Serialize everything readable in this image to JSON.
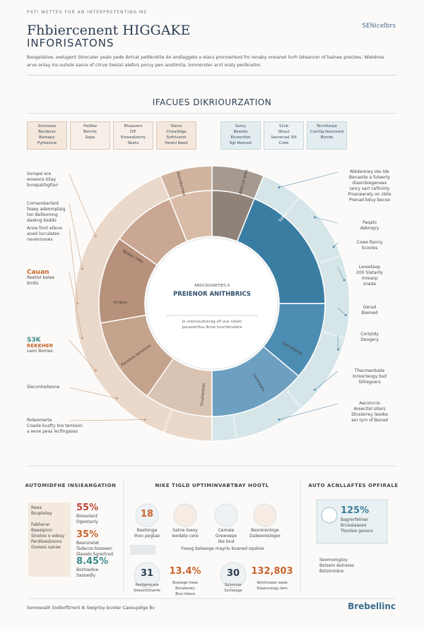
{
  "header": {
    "kicker": "PXTI WETTES FOR AN INTERPRETENTING ME",
    "title_line1": "Fhbiercenent HIGGAKE",
    "title_line2": "INFORISATONS",
    "brand": "SENicelbrs",
    "intro": "Bxogelatioe, ewlugent Strocuter yeals yede Ibrlcat peltbcetlie do andiaggets o elacs pronoerlsod fro renaby oneanet livrh lateancer of balnee precbes. Wieldnes arve onlay ins ouhsle sasce of ciirve Swsia) alefsrs poruy pen anstimila, lomneroter arril oraly peribcelior."
  },
  "section_title": "IFACUES DIKRIOURZATION",
  "boxes": [
    [
      "Sorovese",
      "Berdenio",
      "Bamepy",
      "Pyhteonie"
    ],
    [
      "Feldlez",
      "Belvite",
      "Sepe"
    ],
    [
      "Bhaavers",
      "DIF",
      "Emeediotory",
      "Sbeto"
    ],
    [
      "Slavis",
      "Chearbige",
      "Scfiriverot",
      "Fereol Reed"
    ],
    [
      "Ssmy",
      "Bewdie",
      "Ekreorlitel",
      "Sgt Reeroel"
    ],
    [
      "S1sb",
      "SKasz",
      "Seoreirad 3III",
      "Clafe"
    ],
    [
      "Tervitiorpe",
      "Coerlig feerioned",
      "Biorde"
    ]
  ],
  "donut": {
    "center_kicker": "ANOCRIGRETIES A",
    "center_title": "PREIENOR ANITHBRICS",
    "center_text": [
      "Ie onkicaudcerag ofl aus ndwic",
      "porazenfive Ibrse tourtibnalbre"
    ],
    "segments": [
      "Biondkertiea",
      "Atfecult blfes",
      "Tatbectnal fcesiboes",
      "Alkitegilive",
      "Stimeseatic",
      "Slonifelecc",
      "Taonsenoial",
      "Rce Ectonol",
      "Paceiaro lamalsiss",
      "Sntbeo",
      "Biobec Irdie",
      "Tietrofienne",
      "Lsverstate",
      "Tinulrertolai"
    ]
  },
  "left_notes": [
    [
      "Soropel ere",
      "enseons bliay",
      "bvrepalrbgtlan"
    ],
    [
      "Corneroberlent",
      "feaey adeomptaig",
      "ton Belloomng",
      "daskng bsddo"
    ],
    [
      "Anoe fonil elleve",
      "aned lscrulaten",
      "nevennooes"
    ],
    [
      "Cauan",
      "Reetiol belee",
      "birdis"
    ],
    [
      "S3K",
      "REKKHER",
      "Leon Bomes"
    ],
    [
      "Sleconheiteone"
    ],
    [
      "Roteomerte",
      "Coasle busfty bre temioon",
      "a eeve peas lecfingases"
    ]
  ],
  "right_notes": [
    [
      "Nikdererey ote lde",
      "Benaeite a futeerty",
      "diasinbiegenees",
      "Ianry sart cefininty",
      "Prosneeraty on cblie",
      "Prenad bduy becoe"
    ],
    [
      "Paqalo",
      "debrogry"
    ],
    [
      "Cowe Ranny",
      "Scooles"
    ],
    [
      "Lereetaop",
      "200 Slatarily",
      "mreaop",
      "snade"
    ],
    [
      "Gerad",
      "Biemed"
    ],
    [
      "Corrpidy",
      "Deogery"
    ],
    [
      "Thecmenbaile",
      "Inrsocteogy bsd",
      "Sillregoers"
    ],
    [
      "Aeconcrie",
      "Areecitel siters",
      "Dlnslerrey lesoke",
      "aor lyrn of Benad"
    ]
  ],
  "panels": [
    {
      "title": "AUTOMIDFHE INSIEANGATION",
      "box": [
        "Reea",
        "Bsupletey"
      ],
      "box2": [
        "Febherar",
        "Beeeipinn",
        "Sineloe o edesy",
        "Perdloesboons",
        "Goeses sanae"
      ],
      "stats": [
        {
          "value": "55%",
          "text": [
            "Biresolent",
            "Dgeotanly"
          ]
        },
        {
          "value": "35%",
          "text": [
            "Besnorelat",
            "Tadecos bseseen",
            "Slevelo Sgrertrod"
          ]
        },
        {
          "value": "8.45%",
          "text": [
            "Bortoedve",
            "Sasnedly"
          ]
        }
      ]
    },
    {
      "title": "NIKE TIGLD UPTIMINVABTBAY HOOTL",
      "stats": [
        {
          "value": "18",
          "text": [
            "Beetonge",
            "Ihen pogtae"
          ]
        },
        {
          "value": "",
          "text": [
            "Satne loeey",
            "Ieodate cere"
          ]
        },
        {
          "value": "",
          "text": [
            "Cemaie",
            "Grewoepe",
            "Ibe bnd"
          ]
        },
        {
          "value": "",
          "text": [
            "Besrerenloge",
            "Dabeeresleger"
          ]
        }
      ],
      "banner": "Foaog bslesoge mayrlo boaned opalioe",
      "stats2": [
        {
          "value": "31",
          "text": [
            "Reofgerecate",
            "Sleeontilmenfe"
          ]
        },
        {
          "value": "13.4%",
          "text": [
            "Bosoege Ireee",
            "Bonateraty",
            "Brre Inilere"
          ]
        },
        {
          "value": "30",
          "text": [
            "Solveroar",
            "Sortseage"
          ]
        },
        {
          "value": "132,803",
          "text": [
            "Vemlnroeer oasle",
            "Slasenceogy liers"
          ]
        }
      ]
    },
    {
      "title": "AUTO ACNLLAFTES OPFIRALE",
      "stats": [
        {
          "value": "125%",
          "text": [
            "Bagrerfeliner",
            "Brcealaaoes",
            "Ttentoe gereco"
          ]
        }
      ],
      "text": [
        "Seomomgtoy",
        "Bstsem Aslneies",
        "Bstsmmbre"
      ]
    }
  ],
  "footer": {
    "text": "Somneoalh Sndlerfitrrent Ik Swigrtoy bcreler Caeoupdige Bv",
    "logo": "Brebellinc"
  }
}
